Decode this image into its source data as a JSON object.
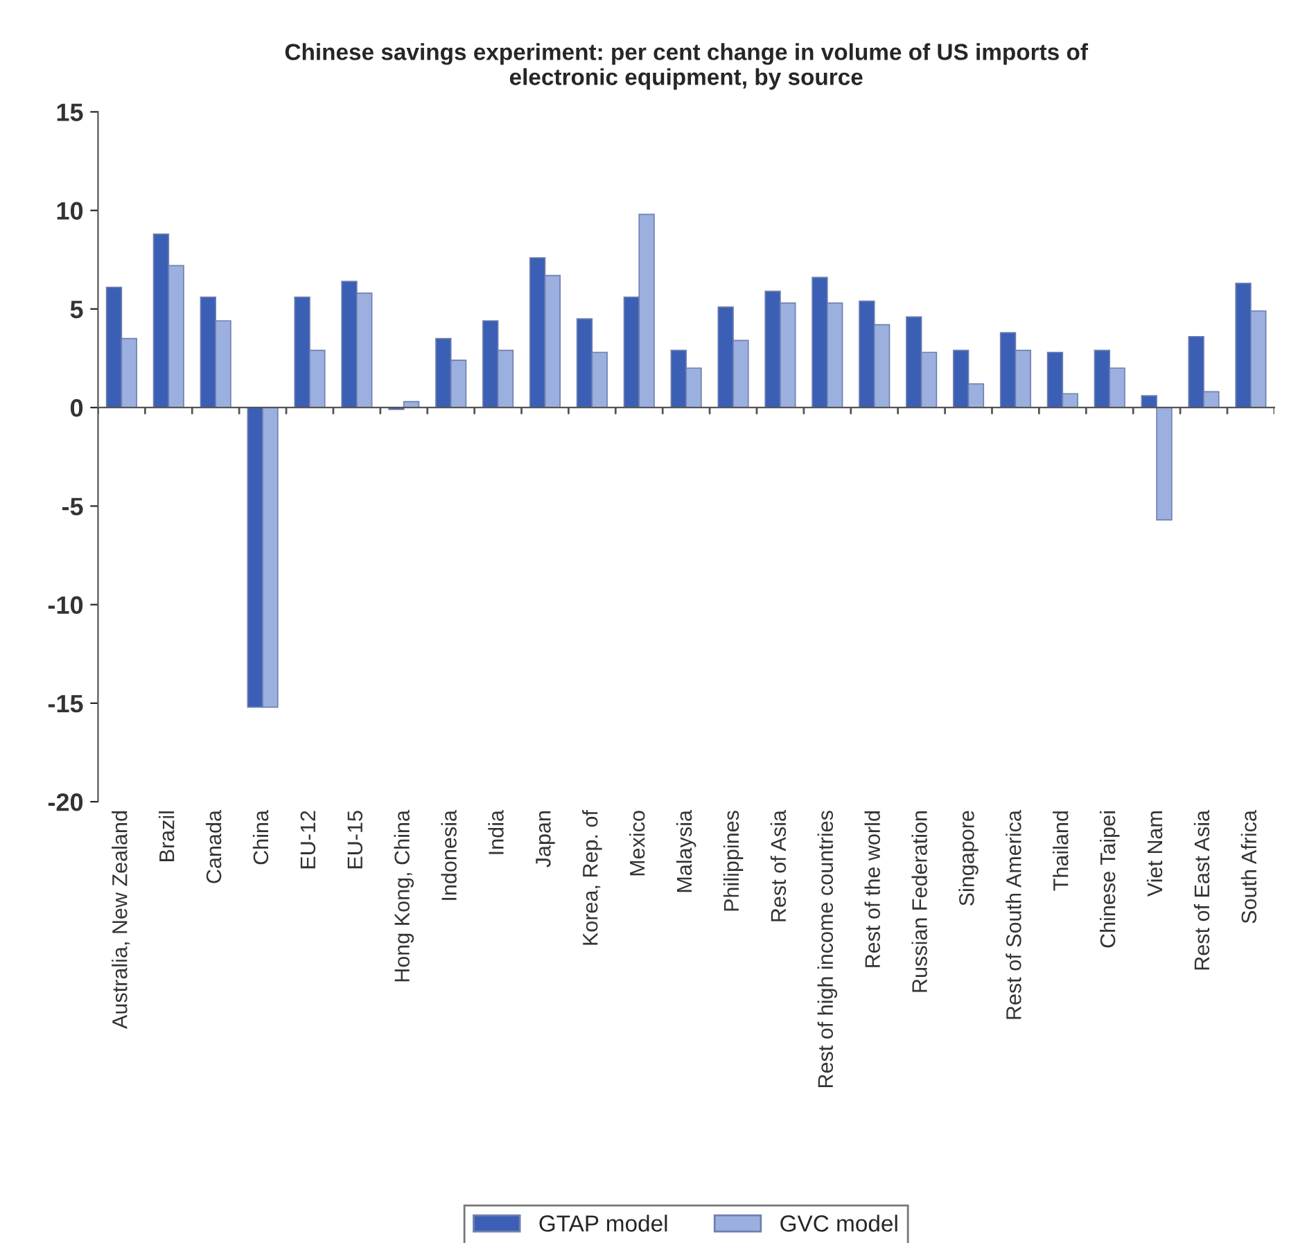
{
  "chart_data": {
    "type": "bar",
    "title": "Chinese savings experiment: per cent change in volume of US imports of\nelectronic equipment, by source",
    "categories": [
      "Australia, New Zealand",
      "Brazil",
      "Canada",
      "China",
      "EU-12",
      "EU-15",
      "Hong Kong, China",
      "Indonesia",
      "India",
      "Japan",
      "Korea, Rep. of",
      "Mexico",
      "Malaysia",
      "Philippines",
      "Rest of Asia",
      "Rest of high income countries",
      "Rest of the world",
      "Russian Federation",
      "Singapore",
      "Rest of South America",
      "Thailand",
      "Chinese Taipei",
      "Viet Nam",
      "Rest of East Asia",
      "South Africa"
    ],
    "series": [
      {
        "name": "GTAP model",
        "color": "#3b5fb5",
        "values": [
          6.1,
          8.8,
          5.6,
          -15.2,
          5.6,
          6.4,
          -0.1,
          3.5,
          4.4,
          7.6,
          4.5,
          5.6,
          2.9,
          5.1,
          5.9,
          6.6,
          5.4,
          4.6,
          2.9,
          3.8,
          2.8,
          2.9,
          0.6,
          3.6,
          6.3
        ]
      },
      {
        "name": "GVC model",
        "color": "#9cb0e0",
        "values": [
          3.5,
          7.2,
          4.4,
          -15.2,
          2.9,
          5.8,
          0.3,
          2.4,
          2.9,
          6.7,
          2.8,
          9.8,
          2.0,
          3.4,
          5.3,
          5.3,
          4.2,
          2.8,
          1.2,
          2.9,
          0.7,
          2.0,
          -5.7,
          0.8,
          4.9
        ]
      }
    ],
    "ylim": [
      -20,
      15
    ],
    "yticks": [
      -20,
      -15,
      -10,
      -5,
      0,
      5,
      10,
      15
    ],
    "legend": "bottom"
  }
}
